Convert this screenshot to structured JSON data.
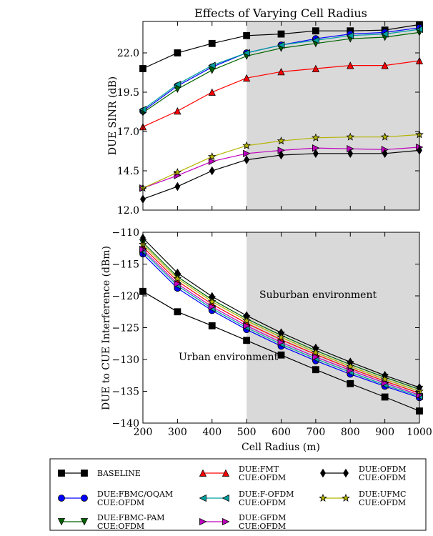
{
  "colors": {
    "shade": "#d9d9d9",
    "BASELINE": "#000000",
    "FBMC_OQAM": "#0000ff",
    "FBMC_PAM": "#006400",
    "FMT": "#ff0000",
    "F_OFDM": "#00a0a0",
    "GFDM": "#bf00bf",
    "OFDM": "#000000",
    "UFMC": "#b4b400"
  },
  "chart_data": [
    {
      "type": "line",
      "title": "Effects of Varying Cell Radius",
      "xlabel": "",
      "ylabel": "DUE SINR (dB)",
      "xlim": [
        200,
        1000
      ],
      "ylim": [
        12.0,
        24.0
      ],
      "yticks": [
        "12.0",
        "14.5",
        "17.0",
        "19.5",
        "22.0"
      ],
      "ytick_values": [
        12.0,
        14.5,
        17.0,
        19.5,
        22.0
      ],
      "shaded_region_x": [
        500,
        1000
      ],
      "x": [
        200,
        300,
        400,
        500,
        600,
        700,
        800,
        900,
        1000
      ],
      "series": [
        {
          "key": "BASELINE",
          "marker": "square",
          "values": [
            21.0,
            22.0,
            22.6,
            23.1,
            23.2,
            23.4,
            23.4,
            23.45,
            23.8
          ]
        },
        {
          "key": "FBMC_OQAM",
          "marker": "circle",
          "values": [
            18.3,
            19.9,
            21.1,
            22.0,
            22.5,
            22.9,
            23.2,
            23.3,
            23.6
          ]
        },
        {
          "key": "FBMC_PAM",
          "marker": "triangle-down",
          "values": [
            18.2,
            19.7,
            20.9,
            21.8,
            22.3,
            22.6,
            22.9,
            23.0,
            23.3
          ]
        },
        {
          "key": "FMT",
          "marker": "triangle-up",
          "values": [
            17.3,
            18.3,
            19.5,
            20.4,
            20.8,
            21.0,
            21.2,
            21.2,
            21.5
          ]
        },
        {
          "key": "F_OFDM",
          "marker": "triangle-left",
          "values": [
            18.4,
            20.0,
            21.2,
            22.0,
            22.5,
            22.8,
            23.1,
            23.2,
            23.5
          ]
        },
        {
          "key": "GFDM",
          "marker": "triangle-right",
          "values": [
            13.4,
            14.2,
            15.1,
            15.6,
            15.8,
            15.95,
            15.9,
            15.85,
            16.0
          ]
        },
        {
          "key": "OFDM",
          "marker": "diamond",
          "values": [
            12.7,
            13.5,
            14.5,
            15.2,
            15.5,
            15.6,
            15.6,
            15.6,
            15.8
          ]
        },
        {
          "key": "UFMC",
          "marker": "star",
          "values": [
            13.4,
            14.4,
            15.4,
            16.1,
            16.4,
            16.6,
            16.65,
            16.65,
            16.8
          ]
        }
      ]
    },
    {
      "type": "line",
      "title": "",
      "xlabel": "Cell Radius (m)",
      "ylabel": "DUE to CUE Interference (dBm)",
      "xlim": [
        200,
        1000
      ],
      "ylim": [
        -140,
        -110
      ],
      "yticks": [
        "−140",
        "−135",
        "−130",
        "−125",
        "−120",
        "−115",
        "−110"
      ],
      "ytick_values": [
        -140,
        -135,
        -130,
        -125,
        -120,
        -115,
        -110
      ],
      "xticks": [
        "200",
        "300",
        "400",
        "500",
        "600",
        "700",
        "800",
        "900",
        "1000"
      ],
      "xtick_values": [
        200,
        300,
        400,
        500,
        600,
        700,
        800,
        900,
        1000
      ],
      "shaded_region_x": [
        500,
        1000
      ],
      "annotations": [
        "Urban environment",
        "Suburban environment"
      ],
      "x": [
        200,
        300,
        400,
        500,
        600,
        700,
        800,
        900,
        1000
      ],
      "series": [
        {
          "key": "BASELINE",
          "marker": "square",
          "values": [
            -119.3,
            -122.5,
            -124.7,
            -127.0,
            -129.3,
            -131.6,
            -133.8,
            -135.9,
            -138.1
          ]
        },
        {
          "key": "FBMC_OQAM",
          "marker": "circle",
          "values": [
            -113.4,
            -118.8,
            -122.3,
            -125.3,
            -127.9,
            -130.2,
            -132.3,
            -134.2,
            -136.0
          ]
        },
        {
          "key": "FBMC_PAM",
          "marker": "triangle-down",
          "values": [
            -111.6,
            -117.0,
            -120.6,
            -123.6,
            -126.2,
            -128.6,
            -130.8,
            -132.8,
            -134.7
          ]
        },
        {
          "key": "FMT",
          "marker": "triangle-up",
          "values": [
            -112.3,
            -117.7,
            -121.3,
            -124.3,
            -126.9,
            -129.2,
            -131.4,
            -133.4,
            -135.3
          ]
        },
        {
          "key": "F_OFDM",
          "marker": "triangle-left",
          "values": [
            -113.0,
            -118.4,
            -122.0,
            -125.0,
            -127.6,
            -129.9,
            -132.0,
            -134.0,
            -135.8
          ]
        },
        {
          "key": "GFDM",
          "marker": "triangle-right",
          "values": [
            -112.7,
            -118.1,
            -121.7,
            -124.7,
            -127.3,
            -129.6,
            -131.7,
            -133.7,
            -135.6
          ]
        },
        {
          "key": "OFDM",
          "marker": "diamond",
          "values": [
            -110.9,
            -116.4,
            -120.1,
            -123.1,
            -125.8,
            -128.2,
            -130.4,
            -132.5,
            -134.4
          ]
        },
        {
          "key": "UFMC",
          "marker": "star",
          "values": [
            -111.9,
            -117.3,
            -120.9,
            -123.9,
            -126.5,
            -128.9,
            -131.1,
            -133.1,
            -135.0
          ]
        }
      ]
    }
  ],
  "legend": {
    "items": [
      {
        "key": "BASELINE",
        "marker": "square",
        "line1": "BASELINE",
        "line2": ""
      },
      {
        "key": "FBMC_OQAM",
        "marker": "circle",
        "line1": "DUE:FBMC/OQAM",
        "line2": "CUE:OFDM"
      },
      {
        "key": "FBMC_PAM",
        "marker": "triangle-down",
        "line1": "DUE:FBMC-PAM",
        "line2": "CUE:OFDM"
      },
      {
        "key": "FMT",
        "marker": "triangle-up",
        "line1": "DUE:FMT",
        "line2": "CUE:OFDM"
      },
      {
        "key": "F_OFDM",
        "marker": "triangle-left",
        "line1": "DUE:F-OFDM",
        "line2": "CUE:OFDM"
      },
      {
        "key": "GFDM",
        "marker": "triangle-right",
        "line1": "DUE:GFDM",
        "line2": "CUE:OFDM"
      },
      {
        "key": "OFDM",
        "marker": "diamond",
        "line1": "DUE:OFDM",
        "line2": "CUE:OFDM"
      },
      {
        "key": "UFMC",
        "marker": "star",
        "line1": "DUE:UFMC",
        "line2": "CUE:OFDM"
      }
    ]
  }
}
